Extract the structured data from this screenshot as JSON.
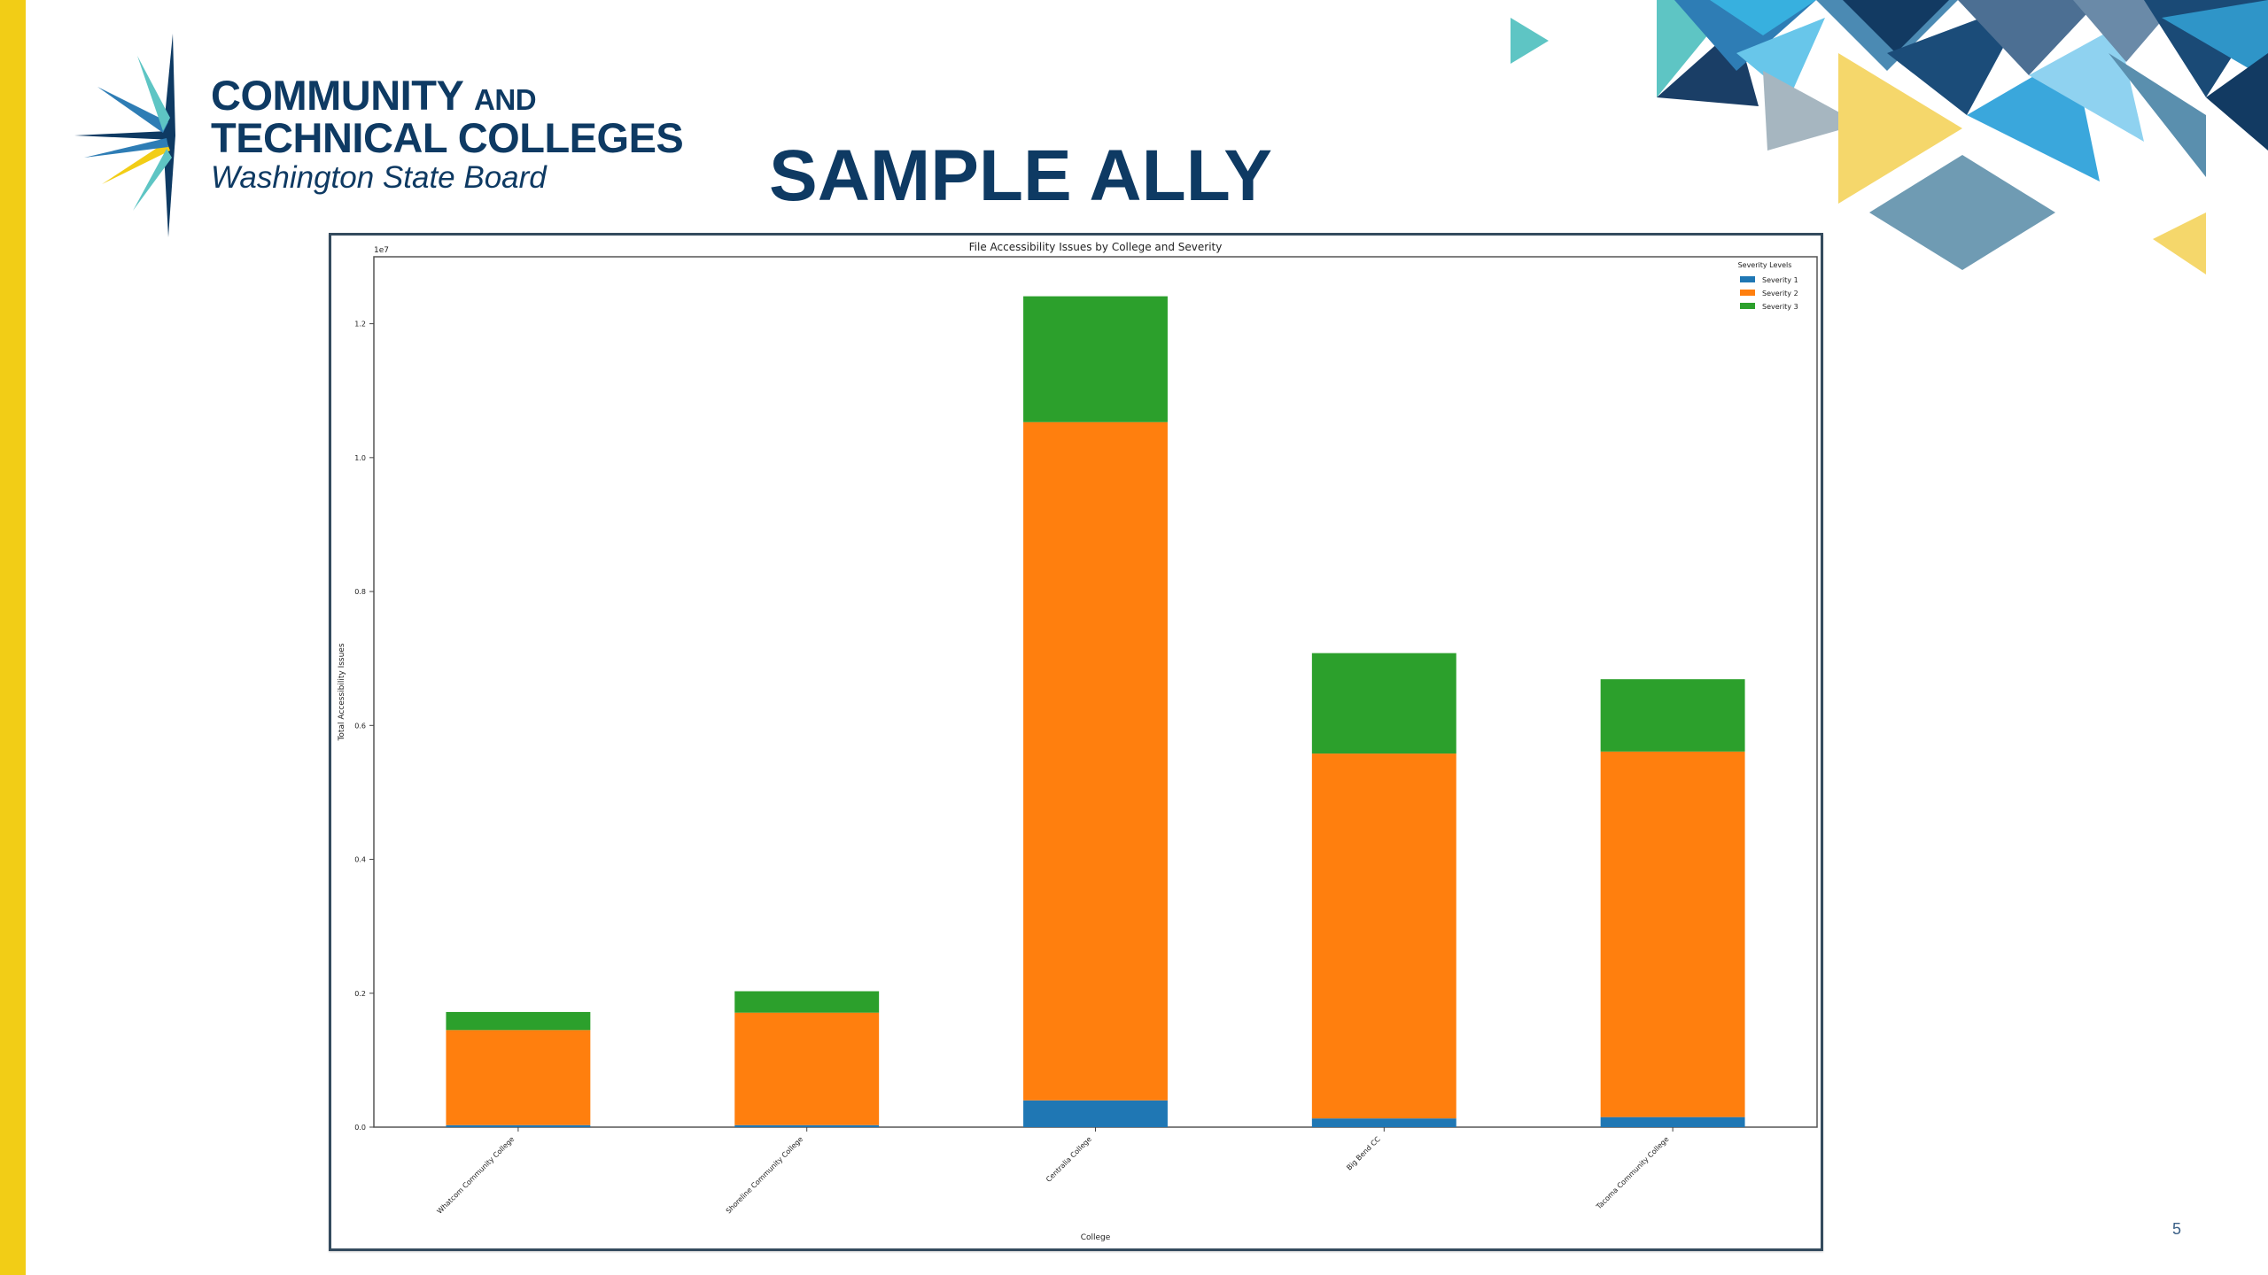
{
  "slide": {
    "org_line1": "COMMUNITY",
    "org_line1_small": "AND",
    "org_line2": "TECHNICAL COLLEGES",
    "org_line3": "Washington State Board",
    "title": "SAMPLE ALLY",
    "page_number": "5"
  },
  "colors": {
    "navy": "#0e3a63",
    "yellow": "#f2cd16",
    "severity1": "#1f77b4",
    "severity2": "#ff7f0e",
    "severity3": "#2ca02c"
  },
  "chart_data": {
    "type": "bar",
    "stacked": true,
    "title": "File Accessibility Issues by College and Severity",
    "xlabel": "College",
    "ylabel": "Total Accessibility Issues",
    "y_offset_label": "1e7",
    "ylim": [
      0,
      1.3
    ],
    "yticks": [
      0.0,
      0.2,
      0.4,
      0.6,
      0.8,
      1.0,
      1.2
    ],
    "ytick_labels": [
      "0.0",
      "0.2",
      "0.4",
      "0.6",
      "0.8",
      "1.0",
      "1.2"
    ],
    "categories": [
      "Whatcom Community College",
      "Shoreline Community College",
      "Centralia College",
      "Big Bend CC",
      "Tacoma Community College"
    ],
    "series": [
      {
        "name": "Severity 1",
        "color": "#1f77b4",
        "values": [
          0.003,
          0.003,
          0.04,
          0.013,
          0.015
        ]
      },
      {
        "name": "Severity 2",
        "color": "#ff7f0e",
        "values": [
          0.142,
          0.168,
          1.013,
          0.545,
          0.546
        ]
      },
      {
        "name": "Severity 3",
        "color": "#2ca02c",
        "values": [
          0.027,
          0.032,
          0.188,
          0.15,
          0.108
        ]
      }
    ],
    "legend": {
      "title": "Severity Levels",
      "position": "top-right"
    },
    "grid": false
  }
}
